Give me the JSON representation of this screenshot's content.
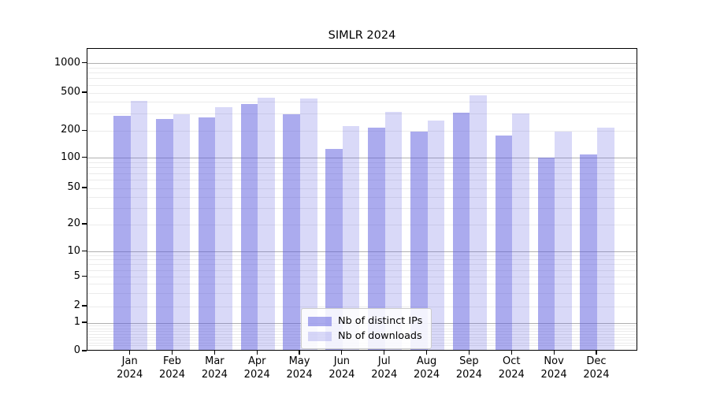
{
  "figure": {
    "title": "SIMLR 2024",
    "background_color": "#ffffff",
    "axis_color": "#000000",
    "major_grid_color": "#b0b0b0",
    "minor_grid_color": "#ebebeb"
  },
  "legend": {
    "items": [
      {
        "label": "Nb of distinct IPs",
        "color": "#a7a7ef"
      },
      {
        "label": "Nb of downloads",
        "color": "#d9d9f8"
      }
    ]
  },
  "chart_data": {
    "type": "bar",
    "title": "SIMLR 2024",
    "categories": [
      "Jan 2024",
      "Feb 2024",
      "Mar 2024",
      "Apr 2024",
      "May 2024",
      "Jun 2024",
      "Jul 2024",
      "Aug 2024",
      "Sep 2024",
      "Oct 2024",
      "Nov 2024",
      "Dec 2024"
    ],
    "x_tick_months": [
      "Jan",
      "Feb",
      "Mar",
      "Apr",
      "May",
      "Jun",
      "Jul",
      "Aug",
      "Sep",
      "Oct",
      "Nov",
      "Dec"
    ],
    "x_tick_year": "2024",
    "series": [
      {
        "name": "Nb of distinct IPs",
        "color": "#a7a7ef",
        "values": [
          278,
          258,
          266,
          366,
          290,
          122,
          208,
          191,
          300,
          172,
          98,
          105
        ]
      },
      {
        "name": "Nb of downloads",
        "color": "#d9d9f8",
        "values": [
          400,
          290,
          340,
          432,
          425,
          217,
          306,
          248,
          458,
          296,
          189,
          208
        ]
      }
    ],
    "xlabel": "",
    "ylabel": "",
    "yscale": "symlog",
    "ylim": [
      0,
      1430
    ],
    "yticks": [
      0,
      1,
      2,
      5,
      10,
      20,
      50,
      100,
      200,
      500,
      1000
    ],
    "grid": "horizontal major and log-minor gridlines",
    "legend_position": "lower center (inset)"
  }
}
